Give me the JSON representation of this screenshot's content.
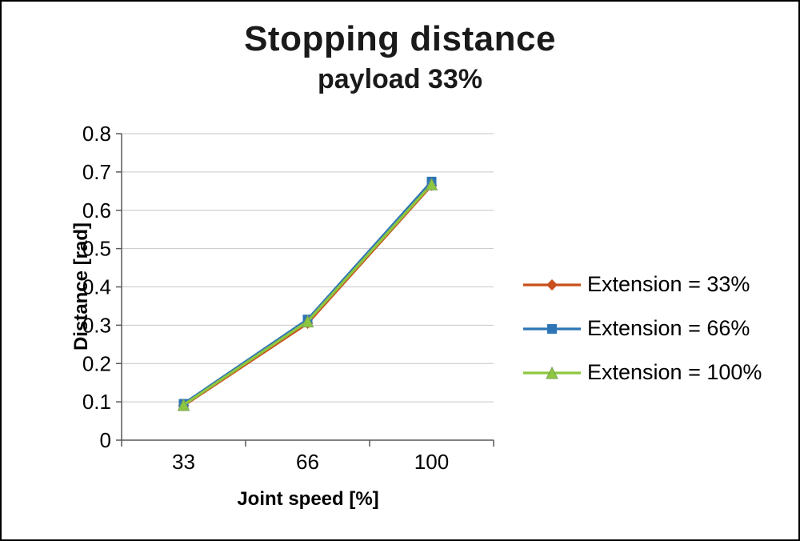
{
  "frame": {
    "background": "#ffffff",
    "border_color": "#000000"
  },
  "chart_data": {
    "type": "line",
    "title": "Stopping distance",
    "subtitle": "payload 33%",
    "xlabel": "Joint speed [%]",
    "ylabel": "Distance [rad]",
    "categories": [
      "33",
      "66",
      "100"
    ],
    "ylim": [
      0,
      0.8
    ],
    "ytick_step": 0.1,
    "grid": true,
    "legend_position": "right",
    "colors": {
      "gridline": "#c6c6c6",
      "axis": "#595959"
    },
    "series": [
      {
        "name": "Extension = 33%",
        "marker": "diamond",
        "color": "#c9501c",
        "values": [
          0.09,
          0.305,
          0.665
        ]
      },
      {
        "name": "Extension = 66%",
        "marker": "square",
        "color": "#2e75b6",
        "values": [
          0.095,
          0.315,
          0.675
        ]
      },
      {
        "name": "Extension = 100%",
        "marker": "triangle",
        "color": "#8dc63f",
        "values": [
          0.092,
          0.31,
          0.668
        ]
      }
    ]
  }
}
